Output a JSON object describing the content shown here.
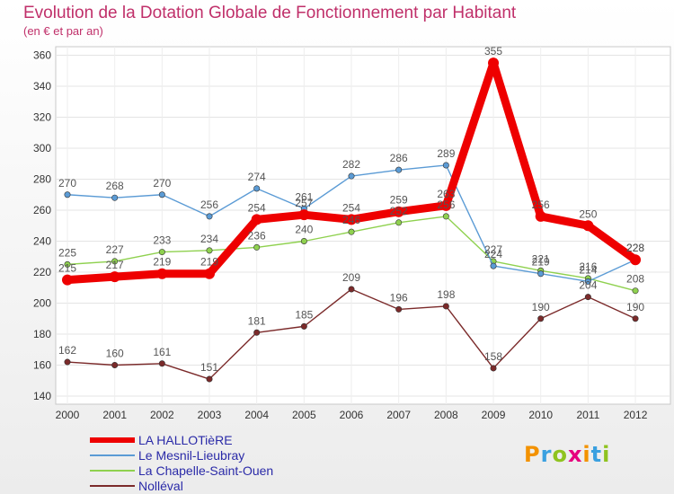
{
  "chart_data": {
    "type": "line",
    "title": "Evolution de la Dotation Globale de Fonctionnement par Habitant",
    "subtitle": "(en € et par an)",
    "categories": [
      "2000",
      "2001",
      "2002",
      "2003",
      "2004",
      "2005",
      "2006",
      "2007",
      "2008",
      "2009",
      "2010",
      "2011",
      "2012"
    ],
    "ylim": [
      140,
      360
    ],
    "yticks": [
      140,
      160,
      180,
      200,
      220,
      240,
      260,
      280,
      300,
      320,
      340,
      360
    ],
    "grid": true,
    "legend_position": "bottom-left",
    "series": [
      {
        "name": "LA HALLOTièRE",
        "color": "#ee0000",
        "values": [
          215,
          217,
          219,
          219,
          254,
          257,
          254,
          259,
          263,
          355,
          256,
          250,
          228
        ]
      },
      {
        "name": "Le Mesnil-Lieubray",
        "color": "#5b9bd5",
        "values": [
          270,
          268,
          270,
          256,
          274,
          261,
          282,
          286,
          289,
          224,
          219,
          214,
          228
        ]
      },
      {
        "name": "La Chapelle-Saint-Ouen",
        "color": "#8fd14f",
        "values": [
          225,
          227,
          233,
          234,
          236,
          240,
          246,
          252,
          256,
          227,
          221,
          216,
          208
        ]
      },
      {
        "name": "Nolléval",
        "color": "#7b2a2a",
        "values": [
          162,
          160,
          161,
          151,
          181,
          185,
          209,
          196,
          198,
          158,
          190,
          204,
          190
        ]
      }
    ]
  },
  "logo": {
    "text": "Proxiti"
  }
}
